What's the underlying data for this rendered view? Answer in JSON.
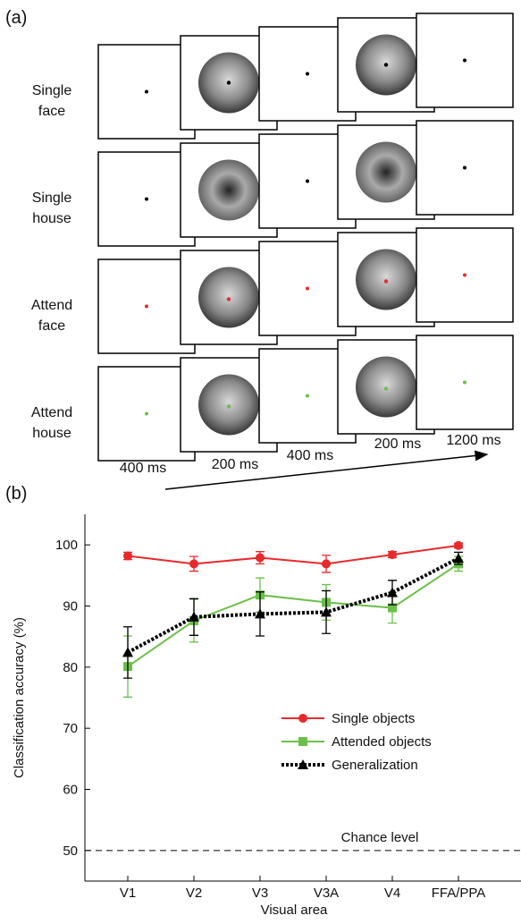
{
  "panel_a": {
    "label": "(a)",
    "rows": [
      [
        "Single",
        "face"
      ],
      [
        "Single",
        "house"
      ],
      [
        "Attend",
        "face"
      ],
      [
        "Attend",
        "house"
      ]
    ],
    "durations": [
      "400 ms",
      "200 ms",
      "400 ms",
      "200 ms",
      "1200 ms"
    ]
  },
  "chart_data": {
    "type": "line",
    "panel_label": "(b)",
    "x_label": "Visual area",
    "y_label": "Classification accuracy (%)",
    "categories": [
      "V1",
      "V2",
      "V3",
      "V3A",
      "V4",
      "FFA/PPA"
    ],
    "series": [
      {
        "name": "Single objects",
        "color": "#e8292b",
        "marker": "circle",
        "style": "solid",
        "values": [
          98.2,
          96.9,
          97.9,
          96.9,
          98.4,
          99.9
        ],
        "errors": [
          0.6,
          1.2,
          1.0,
          1.4,
          0.5,
          0.4
        ]
      },
      {
        "name": "Attended objects",
        "color": "#6cc04a",
        "marker": "square",
        "style": "solid",
        "values": [
          80.1,
          87.6,
          91.8,
          90.6,
          89.7,
          96.9
        ],
        "errors": [
          5.0,
          3.5,
          2.8,
          2.9,
          2.5,
          1.2
        ]
      },
      {
        "name": "Generalization",
        "color": "#000000",
        "marker": "triangle",
        "style": "dotted",
        "values": [
          82.4,
          88.2,
          88.7,
          89.0,
          92.2,
          97.8
        ],
        "errors": [
          4.2,
          3.0,
          3.6,
          3.5,
          2.0,
          1.0
        ]
      }
    ],
    "ylim": [
      45,
      105
    ],
    "yticks": [
      50,
      60,
      70,
      80,
      90,
      100
    ],
    "chance_level": 50,
    "chance_label": "Chance level",
    "legend": "lower-center"
  }
}
